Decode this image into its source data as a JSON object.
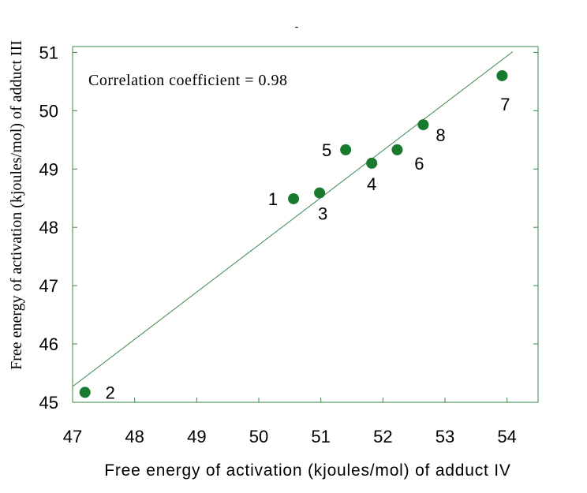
{
  "chart_data": {
    "type": "scatter",
    "title": "-",
    "xlabel": "Free energy of activation (kjoules/mol) of adduct IV",
    "ylabel": "Free energy of activation (kjoules/mol) of adduct III",
    "annotation": "Correlation coefficient = 0.98",
    "xlim": [
      47,
      54.5
    ],
    "ylim": [
      45,
      51.1
    ],
    "x_ticks": [
      47,
      48,
      49,
      50,
      51,
      52,
      53,
      54
    ],
    "y_ticks": [
      45,
      46,
      47,
      48,
      49,
      50,
      51
    ],
    "grid": false,
    "colors": {
      "marker": "#177a2e",
      "line": "#3a8a4a",
      "frame": "#3a8a4a"
    },
    "points": [
      {
        "label": "1",
        "x": 50.56,
        "y": 48.49
      },
      {
        "label": "2",
        "x": 47.2,
        "y": 45.17
      },
      {
        "label": "3",
        "x": 50.98,
        "y": 48.59
      },
      {
        "label": "4",
        "x": 51.82,
        "y": 49.1
      },
      {
        "label": "5",
        "x": 51.4,
        "y": 49.33
      },
      {
        "label": "6",
        "x": 52.23,
        "y": 49.33
      },
      {
        "label": "7",
        "x": 53.92,
        "y": 50.6
      },
      {
        "label": "8",
        "x": 52.65,
        "y": 49.76
      }
    ],
    "fit_line": {
      "x": [
        47,
        54.09
      ],
      "y": [
        45.27,
        51.01
      ]
    }
  }
}
